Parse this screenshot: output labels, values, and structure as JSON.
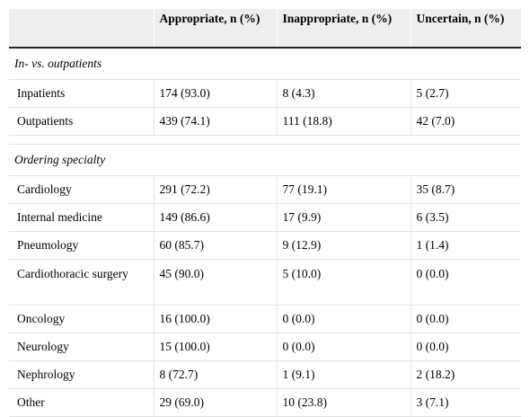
{
  "table": {
    "headers": [
      "",
      "Appropriate, n (%)",
      "Inappropriate, n (%)",
      "Uncertain, n (%)"
    ],
    "sections": [
      {
        "title": "In- vs. outpatients",
        "rows": [
          {
            "label": "Inpatients",
            "appropriate": "174 (93.0)",
            "inappropriate": "8 (4.3)",
            "uncertain": "5 (2.7)"
          },
          {
            "label": "Outpatients",
            "appropriate": "439 (74.1)",
            "inappropriate": "111 (18.8)",
            "uncertain": "42 (7.0)"
          }
        ]
      },
      {
        "title": "Ordering specialty",
        "rows": [
          {
            "label": "Cardiology",
            "appropriate": "291 (72.2)",
            "inappropriate": "77 (19.1)",
            "uncertain": "35 (8.7)"
          },
          {
            "label": "Internal medicine",
            "appropriate": "149 (86.6)",
            "inappropriate": "17 (9.9)",
            "uncertain": "6 (3.5)"
          },
          {
            "label": "Pneumology",
            "appropriate": "60 (85.7)",
            "inappropriate": "9 (12.9)",
            "uncertain": "1 (1.4)"
          },
          {
            "label": "Cardiothoracic surgery",
            "appropriate": "45 (90.0)",
            "inappropriate": "5 (10.0)",
            "uncertain": "0 (0.0)"
          },
          {
            "label": "Oncology",
            "appropriate": "16 (100.0)",
            "inappropriate": "0 (0.0)",
            "uncertain": "0 (0.0)"
          },
          {
            "label": "Neurology",
            "appropriate": "15 (100.0)",
            "inappropriate": "0 (0.0)",
            "uncertain": "0 (0.0)"
          },
          {
            "label": "Nephrology",
            "appropriate": "8 (72.7)",
            "inappropriate": "1 (9.1)",
            "uncertain": "2 (18.2)"
          },
          {
            "label": "Other",
            "appropriate": "29 (69.0)",
            "inappropriate": "10 (23.8)",
            "uncertain": "3 (7.1)"
          }
        ]
      }
    ]
  }
}
